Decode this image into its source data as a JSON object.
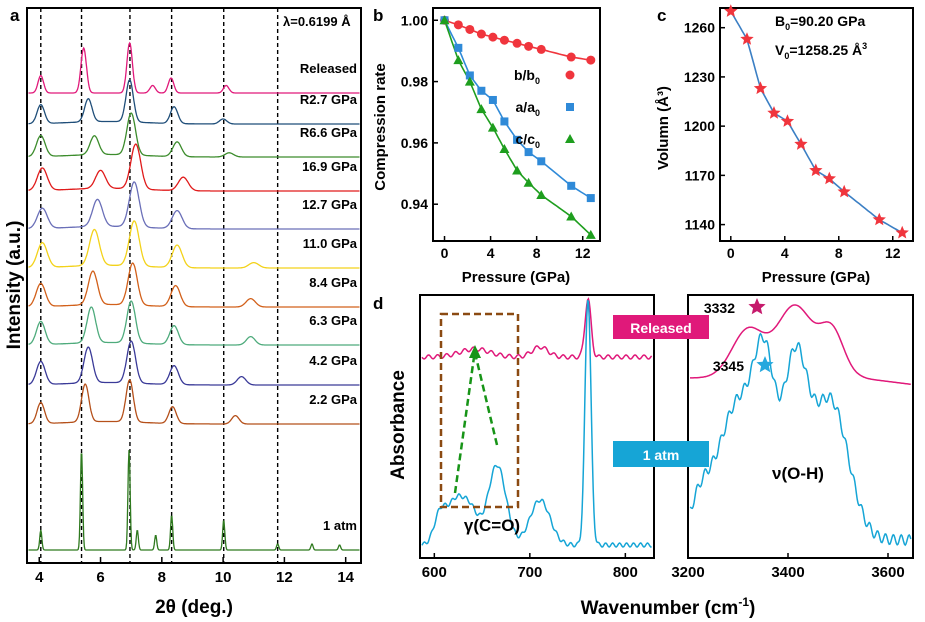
{
  "colors": {
    "black": "#000000",
    "magenta": "#e0197a",
    "cyan": "#16a5d6",
    "red": "#f0353d",
    "blue": "#2f8ad8",
    "green": "#1e9e1e",
    "dark_green": "#2f7a1f",
    "brown_dashed": "#8b4a12",
    "dashed_green": "#179417"
  },
  "chart_data": [
    {
      "panel": "a",
      "type": "line",
      "xlabel": "2θ (deg.)",
      "ylabel": "Intensity (a.u.)",
      "xlim": [
        3.6,
        14.5
      ],
      "x_ticks": [
        "4",
        "6",
        "8",
        "10",
        "12",
        "14"
      ],
      "wavelength_label": "λ=0.6199 Å",
      "reference_dashed_lines": [
        4.05,
        5.38,
        6.96,
        8.32,
        10.02,
        11.78
      ],
      "series": [
        {
          "name": "Released",
          "color": "#e0197a",
          "peaks": [
            [
              4.05,
              0.35
            ],
            [
              5.45,
              0.9
            ],
            [
              6.95,
              1.0
            ],
            [
              7.7,
              0.15
            ],
            [
              8.3,
              0.3
            ],
            [
              10.1,
              0.15
            ]
          ]
        },
        {
          "name": "R2.7 GPa",
          "color": "#1f4e79",
          "peaks": [
            [
              4.05,
              0.45
            ],
            [
              5.6,
              0.55
            ],
            [
              6.95,
              1.0
            ],
            [
              8.4,
              0.4
            ],
            [
              10.0,
              0.12
            ]
          ]
        },
        {
          "name": "R6.6 GPa",
          "color": "#3c8c2c",
          "peaks": [
            [
              4.05,
              0.5
            ],
            [
              5.8,
              0.45
            ],
            [
              7.0,
              1.0
            ],
            [
              8.5,
              0.35
            ],
            [
              10.2,
              0.1
            ]
          ]
        },
        {
          "name": "16.9 GPa",
          "color": "#e01b1b",
          "peaks": [
            [
              4.1,
              0.5
            ],
            [
              6.0,
              0.4
            ],
            [
              7.15,
              1.0
            ],
            [
              8.7,
              0.3
            ]
          ]
        },
        {
          "name": "12.7 GPa",
          "color": "#6a6fb8",
          "peaks": [
            [
              4.1,
              0.45
            ],
            [
              5.9,
              0.6
            ],
            [
              7.1,
              1.0
            ],
            [
              8.5,
              0.4
            ]
          ]
        },
        {
          "name": "11.0 GPa",
          "color": "#f3d21a",
          "peaks": [
            [
              4.1,
              0.55
            ],
            [
              5.8,
              0.8
            ],
            [
              7.1,
              1.0
            ],
            [
              8.5,
              0.5
            ],
            [
              11.0,
              0.12
            ]
          ]
        },
        {
          "name": "8.4 GPa",
          "color": "#d2601a",
          "peaks": [
            [
              4.05,
              0.55
            ],
            [
              5.75,
              0.8
            ],
            [
              7.05,
              1.0
            ],
            [
              8.45,
              0.5
            ],
            [
              10.9,
              0.2
            ]
          ]
        },
        {
          "name": "6.3 GPa",
          "color": "#4eab7c",
          "peaks": [
            [
              4.05,
              0.55
            ],
            [
              5.7,
              0.85
            ],
            [
              7.0,
              1.0
            ],
            [
              8.4,
              0.45
            ],
            [
              10.9,
              0.2
            ]
          ]
        },
        {
          "name": "4.2 GPa",
          "color": "#3a3a98",
          "peaks": [
            [
              4.05,
              0.55
            ],
            [
              5.6,
              0.85
            ],
            [
              7.0,
              1.0
            ],
            [
              8.4,
              0.45
            ],
            [
              10.6,
              0.2
            ]
          ]
        },
        {
          "name": "2.2 GPa",
          "color": "#b5501a",
          "peaks": [
            [
              4.05,
              0.5
            ],
            [
              5.5,
              0.9
            ],
            [
              6.95,
              1.0
            ],
            [
              8.35,
              0.4
            ],
            [
              10.4,
              0.2
            ]
          ]
        },
        {
          "name": "1 atm",
          "color": "#2f7a1f",
          "peaks": [
            [
              4.05,
              0.2
            ],
            [
              5.38,
              1.0
            ],
            [
              6.93,
              1.0
            ],
            [
              7.2,
              0.2
            ],
            [
              7.8,
              0.15
            ],
            [
              8.32,
              0.35
            ],
            [
              10.02,
              0.3
            ],
            [
              11.78,
              0.06
            ],
            [
              12.9,
              0.06
            ],
            [
              13.8,
              0.05
            ]
          ]
        }
      ]
    },
    {
      "panel": "b",
      "type": "scatter",
      "xlabel": "Pressure (GPa)",
      "ylabel": "Compression rate",
      "xlim": [
        -1,
        13.5
      ],
      "ylim": [
        0.928,
        1.004
      ],
      "x_ticks": [
        "0",
        "4",
        "8",
        "12"
      ],
      "y_ticks": [
        "1.00",
        "0.98",
        "0.96",
        "0.94"
      ],
      "series": [
        {
          "name": "b/b0",
          "marker": "circle",
          "color": "#f0353d",
          "x": [
            0,
            1.2,
            2.2,
            3.2,
            4.2,
            5.2,
            6.3,
            7.3,
            8.4,
            11.0,
            12.7
          ],
          "y": [
            1.0,
            0.9985,
            0.997,
            0.9955,
            0.9945,
            0.9935,
            0.9925,
            0.9915,
            0.9905,
            0.988,
            0.987
          ]
        },
        {
          "name": "a/a0",
          "marker": "square",
          "color": "#2f8ad8",
          "x": [
            0,
            1.2,
            2.2,
            3.2,
            4.2,
            5.2,
            6.3,
            7.3,
            8.4,
            11.0,
            12.7
          ],
          "y": [
            1.0,
            0.991,
            0.982,
            0.977,
            0.974,
            0.967,
            0.961,
            0.957,
            0.954,
            0.946,
            0.942
          ]
        },
        {
          "name": "c/c0",
          "marker": "triangle",
          "color": "#1e9e1e",
          "x": [
            0,
            1.2,
            2.2,
            3.2,
            4.2,
            5.2,
            6.3,
            7.3,
            8.4,
            11.0,
            12.7
          ],
          "y": [
            1.0,
            0.987,
            0.98,
            0.971,
            0.965,
            0.958,
            0.951,
            0.947,
            0.943,
            0.936,
            0.93
          ]
        }
      ],
      "legend_labels": [
        {
          "main": "b/b",
          "sub": "0"
        },
        {
          "main": "a/a",
          "sub": "0"
        },
        {
          "main": "c/c",
          "sub": "0"
        }
      ]
    },
    {
      "panel": "c",
      "type": "scatter",
      "xlabel": "Pressure (GPa)",
      "ylabel": "Volumn (Å³)",
      "xlim": [
        -0.8,
        13.5
      ],
      "ylim": [
        1130,
        1272
      ],
      "x_ticks": [
        "0",
        "4",
        "8",
        "12"
      ],
      "y_ticks": [
        "1260",
        "1230",
        "1200",
        "1170",
        "1140"
      ],
      "series": [
        {
          "name": "",
          "marker": "star",
          "color": "#f0353d",
          "x": [
            0,
            1.2,
            2.2,
            3.2,
            4.2,
            5.2,
            6.3,
            7.3,
            8.4,
            11.0,
            12.7
          ],
          "y": [
            1270,
            1253,
            1223,
            1208,
            1203,
            1189,
            1173,
            1168,
            1160,
            1143,
            1135
          ]
        }
      ],
      "fit_label_b": {
        "main": "B",
        "sub": "0",
        "rest": "=90.20 GPa"
      },
      "fit_label_v": {
        "main": "V",
        "sub": "0",
        "rest": "=1258.25 Å",
        "sup": "3"
      }
    },
    {
      "panel": "d",
      "type": "line",
      "xlabel": "Wavenumber (cm⁻¹)",
      "ylabel": "Absorbance",
      "left_xlim": [
        585,
        830
      ],
      "left_x_ticks": [
        "600",
        "700",
        "800"
      ],
      "right_xlim": [
        3200,
        3650
      ],
      "right_x_ticks": [
        "3200",
        "3400",
        "3600"
      ],
      "series_labels": [
        "Released",
        "1 atm"
      ],
      "annotations": [
        "γ(C=O)",
        "ν(O-H)",
        "3332",
        "3345"
      ]
    }
  ],
  "panel_labels": [
    "a",
    "b",
    "c",
    "d"
  ]
}
